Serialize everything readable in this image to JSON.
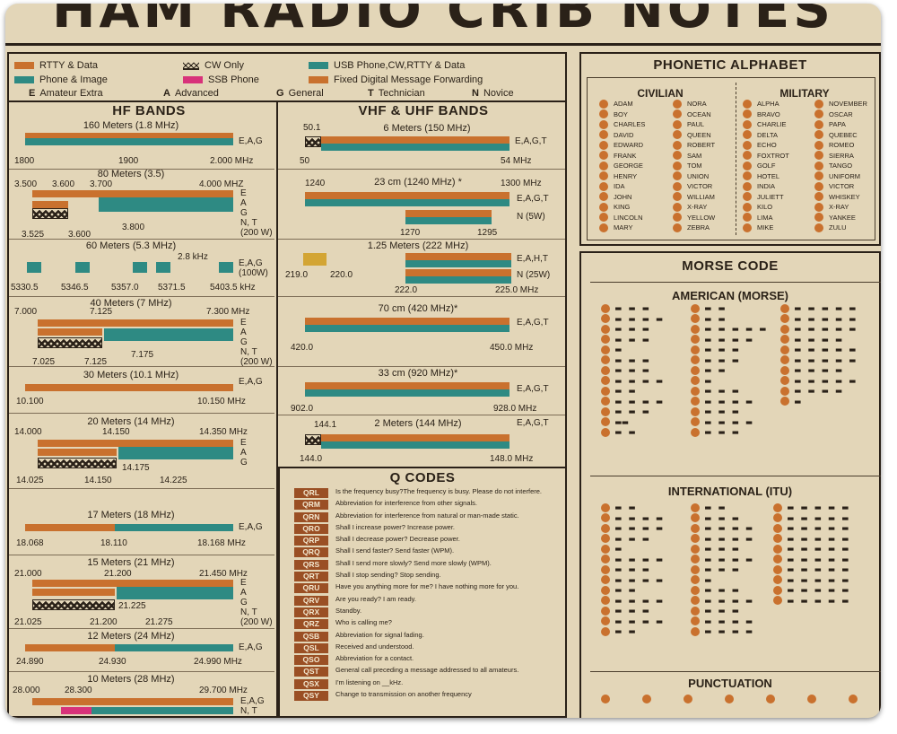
{
  "title": "HAM RADIO CRIB NOTES",
  "legend": {
    "rtty": "RTTY & Data",
    "cw": "CW Only",
    "usb": "USB Phone,CW,RTTY & Data",
    "phone": "Phone & Image",
    "ssb": "SSB Phone",
    "fixed": "Fixed Digital Message Forwarding",
    "licenses": [
      {
        "letter": "E",
        "name": "Amateur Extra"
      },
      {
        "letter": "A",
        "name": "Advanced"
      },
      {
        "letter": "G",
        "name": "General"
      },
      {
        "letter": "T",
        "name": "Technician"
      },
      {
        "letter": "N",
        "name": "Novice"
      }
    ]
  },
  "colors": {
    "orange": "#c9712e",
    "teal": "#2e8a83",
    "pink": "#d8327a",
    "yellow": "#d3a534",
    "dark": "#2a2118",
    "paper": "#e3d6b8",
    "qcode": "#9a4f24"
  },
  "hf": {
    "heading": "HF BANDS",
    "bands": [
      {
        "title": "160 Meters (1.8 MHz)",
        "freqs": [
          "1800",
          "1900",
          "2.000 MHz"
        ],
        "lic": "E,A,G"
      },
      {
        "title": "80 Meters (3.5)",
        "freqs": [
          "3.500",
          "3.600",
          "3.700",
          "4.000 MHZ",
          "3.525",
          "3.600",
          "3.800"
        ],
        "lic": "E\nA\nG\nN, T\n(200 W)"
      },
      {
        "title": "60 Meters (5.3 MHz)",
        "sub": "2.8 kHz",
        "freqs": [
          "5330.5",
          "5346.5",
          "5357.0",
          "5371.5",
          "5403.5 kHz"
        ],
        "lic": "E,A,G\n(100W)"
      },
      {
        "title": "40 Meters (7 MHz)",
        "freqs": [
          "7.000",
          "7.125",
          "7.300 MHz",
          "7.025",
          "7.125",
          "7.175"
        ],
        "lic": "E\nA\nG\nN, T\n(200 W)"
      },
      {
        "title": "30 Meters (10.1 MHz)",
        "freqs": [
          "10.100",
          "10.150 MHz"
        ],
        "lic": "E,A,G"
      },
      {
        "title": "20 Meters (14 MHz)",
        "freqs": [
          "14.000",
          "14.150",
          "14.350 MHz",
          "14.175",
          "14.025",
          "14.150",
          "14.225"
        ],
        "lic": "E\nA\nG"
      },
      {
        "title": "17 Meters (18 MHz)",
        "freqs": [
          "18.068",
          "18.110",
          "18.168 MHz"
        ],
        "lic": "E,A,G"
      },
      {
        "title": "15 Meters (21 MHz)",
        "freqs": [
          "21.000",
          "21.200",
          "21.450 MHz",
          "21.225",
          "21.025",
          "21.200",
          "21.275"
        ],
        "lic": "E\nA\nG\nN, T\n(200 W)"
      },
      {
        "title": "12 Meters (24 MHz)",
        "freqs": [
          "24.890",
          "24.930",
          "24.990 MHz"
        ],
        "lic": "E,A,G"
      },
      {
        "title": "10 Meters (28 MHz)",
        "freqs": [
          "28.000",
          "28.300",
          "29.700 MHz"
        ],
        "lic": "E,A,G\nN, T"
      }
    ]
  },
  "vhf": {
    "heading": "VHF & UHF BANDS",
    "bands": [
      {
        "title": "6 Meters (150 MHz)",
        "freqs": [
          "50.1",
          "50",
          "54 MHz"
        ],
        "lic": "E,A,G,T"
      },
      {
        "title": "23 cm (1240 MHz) *",
        "freqs": [
          "1240",
          "1300 MHz",
          "1270",
          "1295"
        ],
        "lic": "E,A,G,T\nN (5W)"
      },
      {
        "title": "1.25 Meters (222 MHz)",
        "freqs": [
          "219.0",
          "220.0",
          "222.0",
          "225.0 MHz"
        ],
        "lic": "E,A,H,T\nN (25W)"
      },
      {
        "title": "70 cm (420 MHz)*",
        "freqs": [
          "420.0",
          "450.0 MHz"
        ],
        "lic": "E,A,G,T"
      },
      {
        "title": "33 cm (920 MHz)*",
        "freqs": [
          "902.0",
          "928.0 MHz"
        ],
        "lic": "E,A,G,T"
      },
      {
        "title": "2 Meters (144 MHz)",
        "freqs": [
          "144.1",
          "144.0",
          "148.0 MHz"
        ],
        "lic": "E,A,G,T"
      }
    ]
  },
  "qcodes": {
    "heading": "Q CODES",
    "items": [
      {
        "code": "QRL",
        "text": "Is the frequency busy?The frequency is busy. Please do not interfere."
      },
      {
        "code": "QRM",
        "text": "Abbreviation for interference from other signals."
      },
      {
        "code": "QRN",
        "text": "Abbreviation for interference from natural or man-made static."
      },
      {
        "code": "QRO",
        "text": "Shall I increase power? Increase power."
      },
      {
        "code": "QRP",
        "text": "Shall I decrease power? Decrease power."
      },
      {
        "code": "QRQ",
        "text": "Shall I send faster? Send faster (WPM)."
      },
      {
        "code": "QRS",
        "text": "Shall I send more slowly? Send more slowly (WPM)."
      },
      {
        "code": "QRT",
        "text": "Shall I stop sending? Stop sending."
      },
      {
        "code": "QRU",
        "text": "Have you anything more for me? I have nothing more for you."
      },
      {
        "code": "QRV",
        "text": "Are you ready? I am ready."
      },
      {
        "code": "QRX",
        "text": "Standby."
      },
      {
        "code": "QRZ",
        "text": "Who is calling me?"
      },
      {
        "code": "QSB",
        "text": "Abbreviation for signal fading."
      },
      {
        "code": "QSL",
        "text": "Received and understood."
      },
      {
        "code": "QSO",
        "text": "Abbreviation for a contact."
      },
      {
        "code": "QST",
        "text": "General call preceding a message addressed to all amateurs."
      },
      {
        "code": "QSX",
        "text": "I'm listening on __kHz."
      },
      {
        "code": "QSY",
        "text": "Change to transmission on another frequency"
      }
    ]
  },
  "phonetic": {
    "heading": "PHONETIC ALPHABET",
    "civilian_label": "CIVILIAN",
    "military_label": "MILITARY",
    "civilian": [
      "ADAM",
      "BOY",
      "CHARLES",
      "DAVID",
      "EDWARD",
      "FRANK",
      "GEORGE",
      "HENRY",
      "IDA",
      "JOHN",
      "KING",
      "LINCOLN",
      "MARY",
      "NORA",
      "OCEAN",
      "PAUL",
      "QUEEN",
      "ROBERT",
      "SAM",
      "TOM",
      "UNION",
      "VICTOR",
      "WILLIAM",
      "X-RAY",
      "YELLOW",
      "ZEBRA"
    ],
    "military": [
      "ALPHA",
      "BRAVO",
      "CHARLIE",
      "DELTA",
      "ECHO",
      "FOXTROT",
      "GOLF",
      "HOTEL",
      "INDIA",
      "JULIETT",
      "KILO",
      "LIMA",
      "MIKE",
      "NOVEMBER",
      "OSCAR",
      "PAPA",
      "QUEBEC",
      "ROMEO",
      "SIERRA",
      "TANGO",
      "UNIFORM",
      "VICTOR",
      "WHISKEY",
      "X-RAY",
      "YANKEE",
      "ZULU"
    ]
  },
  "morse": {
    "heading": "MORSE CODE",
    "american_label": "AMERICAN (MORSE)",
    "american": {
      "col1": [
        "▬ ▬ ▬",
        "▬ ▬ ▬ ▬",
        "▬ ▬ ▬",
        "▬ ▬ ▬",
        "▬",
        "▬ ▬ ▬",
        "▬ ▬ ▬",
        "▬ ▬ ▬ ▬",
        "▬ ▬",
        "▬ ▬ ▬ ▬",
        "▬ ▬ ▬",
        "▬▬",
        "▬ ▬"
      ],
      "col2": [
        "▬ ▬",
        "▬ ▬",
        "▬ ▬ ▬ ▬ ▬",
        "▬ ▬ ▬ ▬",
        "▬ ▬ ▬",
        "▬ ▬ ▬",
        "▬ ▬",
        "▬",
        "▬ ▬ ▬",
        "▬ ▬ ▬ ▬",
        "▬ ▬ ▬",
        "▬ ▬ ▬ ▬",
        "▬ ▬ ▬"
      ],
      "col3": [
        "▬ ▬ ▬ ▬ ▬",
        "▬ ▬ ▬ ▬ ▬",
        "▬ ▬ ▬ ▬ ▬",
        "▬ ▬ ▬ ▬",
        "▬ ▬ ▬ ▬ ▬",
        "▬ ▬ ▬ ▬ ▬",
        "▬ ▬ ▬ ▬",
        "▬ ▬ ▬ ▬ ▬",
        "▬ ▬ ▬ ▬",
        "▬"
      ]
    },
    "international_label": "INTERNATIONAL (ITU)",
    "international": {
      "col1": [
        "▬ ▬",
        "▬ ▬ ▬ ▬",
        "▬ ▬ ▬ ▬",
        "▬ ▬ ▬",
        "▬",
        "▬ ▬ ▬ ▬",
        "▬ ▬ ▬",
        "▬ ▬ ▬ ▬",
        "▬ ▬",
        "▬ ▬ ▬ ▬",
        "▬ ▬ ▬",
        "▬ ▬ ▬ ▬",
        "▬ ▬"
      ],
      "col2": [
        "▬ ▬",
        "▬ ▬ ▬",
        "▬ ▬ ▬ ▬",
        "▬ ▬ ▬ ▬",
        "▬ ▬ ▬",
        "▬ ▬ ▬ ▬",
        "▬ ▬ ▬",
        "▬",
        "▬ ▬ ▬",
        "▬ ▬ ▬ ▬",
        "▬ ▬ ▬",
        "▬ ▬ ▬ ▬",
        "▬ ▬ ▬ ▬"
      ],
      "col3": [
        "▬ ▬ ▬ ▬ ▬",
        "▬ ▬ ▬ ▬ ▬",
        "▬ ▬ ▬ ▬ ▬",
        "▬ ▬ ▬ ▬ ▬",
        "▬ ▬ ▬ ▬ ▬",
        "▬ ▬ ▬ ▬ ▬",
        "▬ ▬ ▬ ▬ ▬",
        "▬ ▬ ▬ ▬ ▬",
        "▬ ▬ ▬ ▬ ▬",
        "▬ ▬ ▬ ▬ ▬"
      ]
    },
    "punctuation_label": "PUNCTUATION"
  }
}
